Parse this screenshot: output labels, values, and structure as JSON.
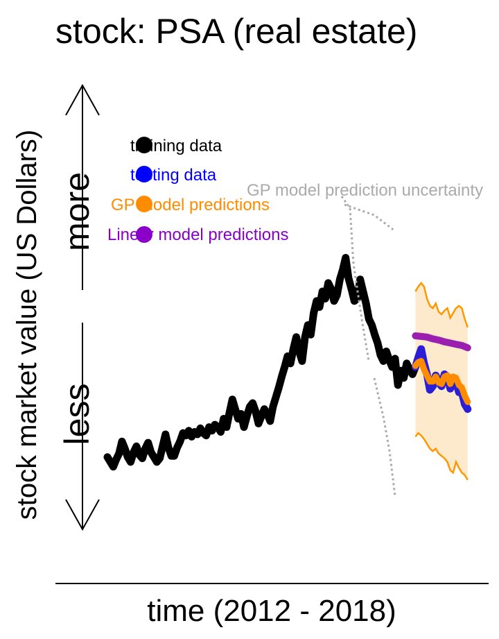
{
  "chart_data": {
    "type": "line",
    "title": "stock: PSA (real estate)",
    "xlabel": "time (2012 - 2018)",
    "ylabel": "stock market value (US Dollars)",
    "y_direction_labels": {
      "more": "more",
      "less": "less"
    },
    "x_range": [
      2012.0,
      2018.25
    ],
    "y_range": [
      60,
      320
    ],
    "grid": false,
    "legend_position": "top-left",
    "legend": [
      {
        "label": "training data",
        "color": "#000000"
      },
      {
        "label": "testing data",
        "color": "#0000ff"
      },
      {
        "label": "GP model predictions",
        "color": "#ff8c00"
      },
      {
        "label": "Linear model predictions",
        "color": "#8b00c9"
      }
    ],
    "annotation": {
      "label": "GP model prediction uncertainty",
      "color": "#aaaaaa"
    },
    "colors": {
      "training": "#000000",
      "testing": "#2a1fd6",
      "gp_prediction": "#ff8c00",
      "gp_band_fill": "#fde9cc",
      "gp_band_edge": "#ff9800",
      "linear": "#9a1fb0",
      "annotation": "#aaaaaa"
    },
    "series": [
      {
        "name": "training data",
        "x": [
          2012.0,
          2012.05,
          2012.1,
          2012.15,
          2012.2,
          2012.25,
          2012.3,
          2012.35,
          2012.4,
          2012.45,
          2012.5,
          2012.55,
          2012.6,
          2012.65,
          2012.7,
          2012.75,
          2012.8,
          2012.85,
          2012.9,
          2012.95,
          2013.0,
          2013.05,
          2013.1,
          2013.15,
          2013.2,
          2013.25,
          2013.3,
          2013.35,
          2013.4,
          2013.45,
          2013.5,
          2013.55,
          2013.6,
          2013.65,
          2013.7,
          2013.75,
          2013.8,
          2013.85,
          2013.9,
          2013.95,
          2014.0,
          2014.05,
          2014.1,
          2014.15,
          2014.2,
          2014.25,
          2014.3,
          2014.35,
          2014.4,
          2014.45,
          2014.5,
          2014.55,
          2014.6,
          2014.65,
          2014.7,
          2014.75,
          2014.8,
          2014.85,
          2014.9,
          2014.95,
          2015.0,
          2015.05,
          2015.1,
          2015.15,
          2015.2,
          2015.25,
          2015.3,
          2015.35,
          2015.4,
          2015.45,
          2015.5,
          2015.55,
          2015.6,
          2015.65,
          2015.7,
          2015.75,
          2015.8,
          2015.85,
          2015.9,
          2015.95,
          2016.0,
          2016.05,
          2016.1,
          2016.15,
          2016.2,
          2016.25,
          2016.3,
          2016.35,
          2016.4,
          2016.45,
          2016.5,
          2016.55,
          2016.6,
          2016.65,
          2016.7,
          2016.75,
          2016.8,
          2016.85,
          2016.9,
          2016.95,
          2017.0,
          2017.05,
          2017.1,
          2017.15,
          2017.2,
          2017.25,
          2017.3
        ],
        "y": [
          130,
          126,
          122,
          128,
          133,
          143,
          137,
          130,
          126,
          134,
          139,
          132,
          129,
          137,
          142,
          134,
          130,
          126,
          129,
          139,
          149,
          138,
          131,
          131,
          138,
          143,
          150,
          148,
          152,
          147,
          151,
          149,
          154,
          150,
          148,
          155,
          152,
          157,
          155,
          151,
          162,
          155,
          167,
          178,
          170,
          162,
          166,
          155,
          164,
          172,
          175,
          168,
          158,
          164,
          170,
          166,
          160,
          172,
          180,
          188,
          197,
          205,
          214,
          208,
          220,
          230,
          218,
          210,
          230,
          240,
          232,
          250,
          260,
          255,
          268,
          262,
          275,
          270,
          260,
          265,
          278,
          286,
          296,
          279,
          270,
          260,
          262,
          278,
          268,
          258,
          245,
          240,
          232,
          225,
          215,
          210,
          218,
          211,
          205,
          212,
          190,
          202,
          196,
          208,
          203,
          199,
          205
        ]
      },
      {
        "name": "testing data",
        "x": [
          2017.3,
          2017.35,
          2017.4,
          2017.45,
          2017.5,
          2017.55,
          2017.6,
          2017.65,
          2017.7,
          2017.75,
          2017.8,
          2017.85,
          2017.9,
          2017.95,
          2018.0,
          2018.05,
          2018.1,
          2018.15,
          2018.2
        ],
        "y": [
          205,
          213,
          220,
          208,
          199,
          186,
          189,
          198,
          192,
          189,
          199,
          197,
          187,
          196,
          193,
          184,
          184,
          174,
          170
        ]
      },
      {
        "name": "GP model predictions",
        "x": [
          2017.3,
          2017.35,
          2017.4,
          2017.45,
          2017.5,
          2017.55,
          2017.6,
          2017.65,
          2017.7,
          2017.75,
          2017.8,
          2017.85,
          2017.9,
          2017.95,
          2018.0,
          2018.05,
          2018.1,
          2018.15,
          2018.2
        ],
        "y": [
          206,
          209,
          210,
          203,
          198,
          193,
          193,
          197,
          192,
          191,
          197,
          198,
          191,
          197,
          196,
          190,
          188,
          181,
          176
        ]
      },
      {
        "name": "GP model prediction uncertainty",
        "x": [
          2017.3,
          2017.35,
          2017.4,
          2017.45,
          2017.5,
          2017.55,
          2017.6,
          2017.65,
          2017.7,
          2017.75,
          2017.8,
          2017.85,
          2017.9,
          2017.95,
          2018.0,
          2018.05,
          2018.1,
          2018.15,
          2018.2
        ],
        "upper": [
          268,
          272,
          275,
          272,
          262,
          256,
          254,
          258,
          251,
          249,
          252,
          254,
          246,
          250,
          254,
          256,
          254,
          245,
          238
        ],
        "lower": [
          147,
          150,
          148,
          145,
          141,
          137,
          135,
          137,
          133,
          131,
          129,
          126,
          119,
          117,
          126,
          121,
          117,
          115,
          111
        ]
      },
      {
        "name": "Linear model predictions",
        "x": [
          2017.3,
          2017.4,
          2017.5,
          2017.6,
          2017.7,
          2017.8,
          2017.9,
          2018.0,
          2018.1,
          2018.2
        ],
        "y": [
          231,
          230.5,
          230,
          228.5,
          227.5,
          226,
          225,
          224,
          223,
          221
        ]
      }
    ]
  }
}
